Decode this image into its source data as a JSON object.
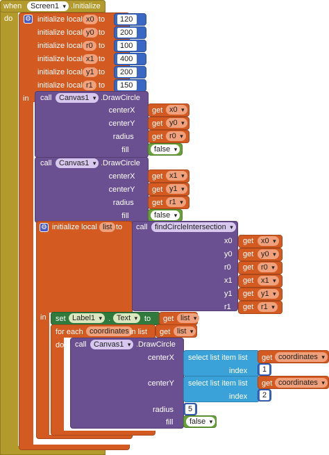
{
  "event": {
    "when": "when",
    "component": "Screen1",
    "event_name": ".Initialize",
    "do": "do"
  },
  "kw": {
    "init_local": "initialize local",
    "to": "to",
    "in": "in",
    "call": "call",
    "get": "get",
    "set": "set",
    "for_each": "for each",
    "in_list": "in list",
    "do": "do",
    "dot": "."
  },
  "locals": [
    {
      "name": "x0",
      "value": "120"
    },
    {
      "name": "y0",
      "value": "200"
    },
    {
      "name": "r0",
      "value": "100"
    },
    {
      "name": "x1",
      "value": "400"
    },
    {
      "name": "y1",
      "value": "200"
    },
    {
      "name": "r1",
      "value": "150"
    }
  ],
  "draw1": {
    "component": "Canvas1",
    "method": ".DrawCircle",
    "params": [
      "centerX",
      "centerY",
      "radius",
      "fill"
    ],
    "gets": [
      "x0",
      "y0",
      "r0"
    ],
    "fill": "false"
  },
  "draw2": {
    "component": "Canvas1",
    "method": ".DrawCircle",
    "params": [
      "centerX",
      "centerY",
      "radius",
      "fill"
    ],
    "gets": [
      "x1",
      "y1",
      "r1"
    ],
    "fill": "false"
  },
  "init_list": {
    "name": "list",
    "proc": "findCircleIntersection",
    "params": [
      "x0",
      "y0",
      "r0",
      "x1",
      "y1",
      "r1"
    ],
    "gets": [
      "x0",
      "y0",
      "r0",
      "x1",
      "y1",
      "r1"
    ]
  },
  "set_label": {
    "component": "Label1",
    "property": "Text",
    "get": "list"
  },
  "foreach": {
    "var": "coordinates",
    "get": "list"
  },
  "draw3": {
    "component": "Canvas1",
    "method": ".DrawCircle",
    "params": [
      "centerX",
      "centerY",
      "radius",
      "fill"
    ],
    "select_label": "select list item  list",
    "index_label": "index",
    "get": "coordinates",
    "index_x": "1",
    "index_y": "2",
    "radius": "5",
    "fill": "false"
  },
  "colors": {
    "event": "#b39a2c",
    "control": "#d35a21",
    "procedure": "#6b5091",
    "list": "#3aa1d9",
    "component": "#2f7a3c",
    "math": "#3a66c4"
  }
}
